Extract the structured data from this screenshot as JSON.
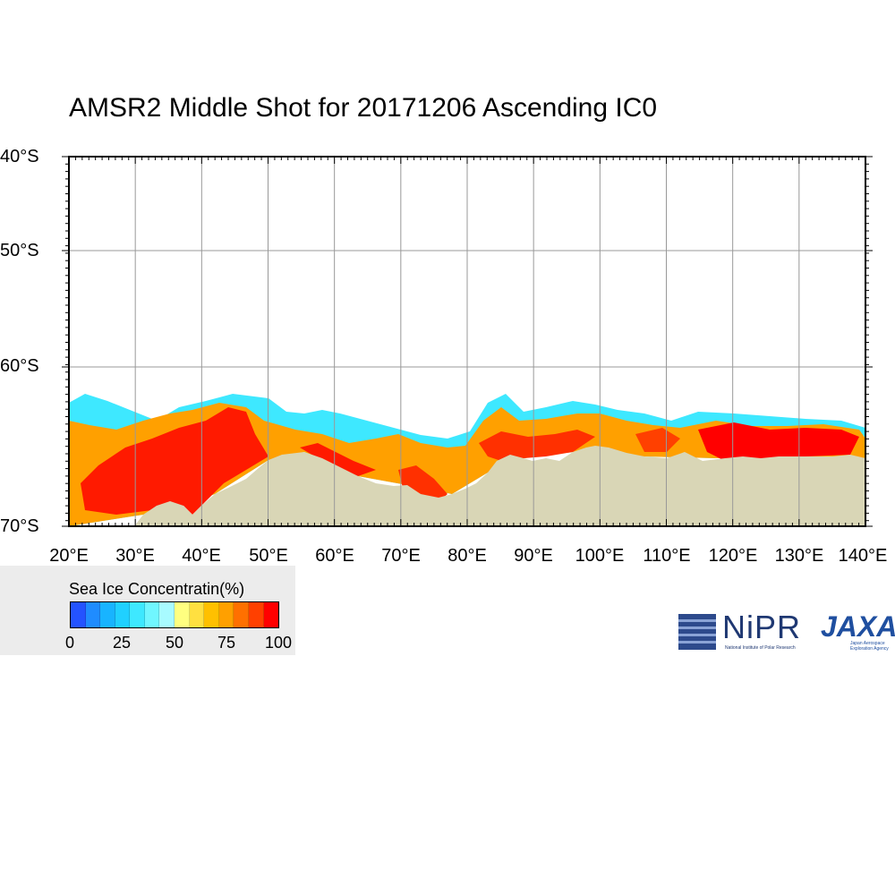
{
  "title": "AMSR2 Middle Shot for 20171206 Ascending IC0",
  "map": {
    "lon_range": [
      20,
      140
    ],
    "lat_range": [
      -70,
      -40
    ],
    "lat_labels": [
      "40°S",
      "50°S",
      "60°S",
      "70°S"
    ],
    "lon_labels": [
      "20°E",
      "30°E",
      "40°E",
      "50°E",
      "60°E",
      "70°E",
      "80°E",
      "90°E",
      "100°E",
      "110°E",
      "120°E",
      "130°E",
      "140°E"
    ],
    "colors": {
      "land": "#d9d6b6",
      "ocean": "#ffffff",
      "grid": "#999999"
    }
  },
  "legend": {
    "title": "Sea Ice Concentratin(%)",
    "ticks": [
      "0",
      "25",
      "50",
      "75",
      "100"
    ],
    "colors": [
      "#2453ff",
      "#1f8cff",
      "#18b4ff",
      "#20d0ff",
      "#3ee8ff",
      "#70f6ff",
      "#a8fbff",
      "#ffff80",
      "#ffe040",
      "#ffc000",
      "#ffa000",
      "#ff7000",
      "#ff4000",
      "#ff0000"
    ]
  },
  "logos": {
    "nipr": "NiPR",
    "nipr_sub": "National Institute of Polar Research",
    "jaxa": "JAXA",
    "jaxa_sub": "Japan Aerospace Exploration Agency"
  }
}
